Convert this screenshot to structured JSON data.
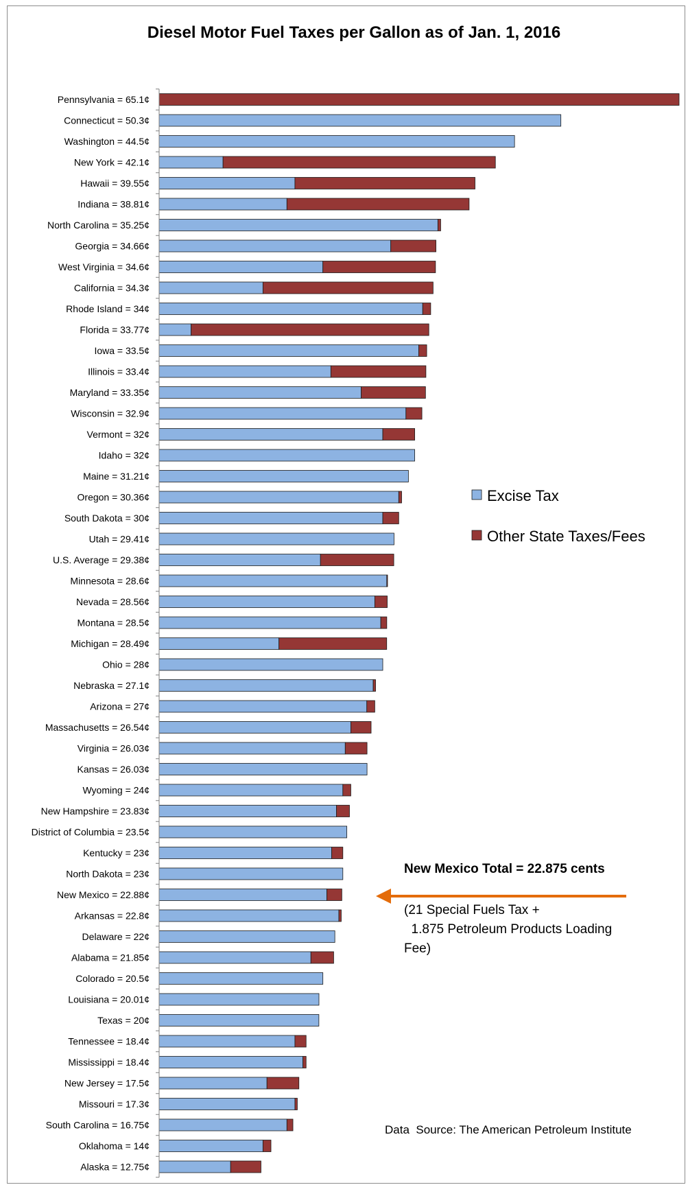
{
  "chart_data": {
    "type": "bar",
    "orientation": "horizontal",
    "stacked": true,
    "title": "Diesel Motor Fuel Taxes per Gallon as of Jan. 1, 2016",
    "xlim": [
      0,
      65.1
    ],
    "grid": false,
    "legend_placement": "right",
    "colors": {
      "excise": "#8db3e2",
      "other": "#953735",
      "arrow": "#e46c0a",
      "outline": "#1a1a1a"
    },
    "series": [
      {
        "name": "Excise Tax",
        "key": "excise"
      },
      {
        "name": "Other State Taxes/Fees",
        "key": "other"
      }
    ],
    "categories": [
      {
        "label": "Pennsylvania = 65.1¢",
        "excise": 0,
        "other": 65.1
      },
      {
        "label": "Connecticut = 50.3¢",
        "excise": 50.3,
        "other": 0
      },
      {
        "label": "Washington = 44.5¢",
        "excise": 44.5,
        "other": 0
      },
      {
        "label": "New York = 42.1¢",
        "excise": 8.0,
        "other": 34.1
      },
      {
        "label": "Hawaii = 39.55¢",
        "excise": 17.0,
        "other": 22.55
      },
      {
        "label": "Indiana = 38.81¢",
        "excise": 16.0,
        "other": 22.81
      },
      {
        "label": "North Carolina = 35.25¢",
        "excise": 34.9,
        "other": 0.35
      },
      {
        "label": "Georgia = 34.66¢",
        "excise": 29.0,
        "other": 5.66
      },
      {
        "label": "West Virginia = 34.6¢",
        "excise": 20.5,
        "other": 14.1
      },
      {
        "label": "California = 34.3¢",
        "excise": 13.0,
        "other": 21.3
      },
      {
        "label": "Rhode Island = 34¢",
        "excise": 33.0,
        "other": 1.0
      },
      {
        "label": "Florida = 33.77¢",
        "excise": 4.0,
        "other": 29.77
      },
      {
        "label": "Iowa = 33.5¢",
        "excise": 32.5,
        "other": 1.0
      },
      {
        "label": "Illinois = 33.4¢",
        "excise": 21.5,
        "other": 11.9
      },
      {
        "label": "Maryland = 33.35¢",
        "excise": 25.3,
        "other": 8.05
      },
      {
        "label": "Wisconsin = 32.9¢",
        "excise": 30.9,
        "other": 2.0
      },
      {
        "label": "Vermont = 32¢",
        "excise": 28.0,
        "other": 4.0
      },
      {
        "label": "Idaho = 32¢",
        "excise": 32.0,
        "other": 0
      },
      {
        "label": "Maine = 31.21¢",
        "excise": 31.21,
        "other": 0
      },
      {
        "label": "Oregon = 30.36¢",
        "excise": 30.0,
        "other": 0.36
      },
      {
        "label": "South Dakota = 30¢",
        "excise": 28.0,
        "other": 2.0
      },
      {
        "label": "Utah = 29.41¢",
        "excise": 29.41,
        "other": 0
      },
      {
        "label": "U.S. Average = 29.38¢",
        "excise": 20.2,
        "other": 9.18
      },
      {
        "label": "Minnesota = 28.6¢",
        "excise": 28.5,
        "other": 0.1
      },
      {
        "label": "Nevada = 28.56¢",
        "excise": 27.0,
        "other": 1.56
      },
      {
        "label": "Montana = 28.5¢",
        "excise": 27.75,
        "other": 0.75
      },
      {
        "label": "Michigan = 28.49¢",
        "excise": 15.0,
        "other": 13.49
      },
      {
        "label": "Ohio = 28¢",
        "excise": 28.0,
        "other": 0
      },
      {
        "label": "Nebraska = 27.1¢",
        "excise": 26.8,
        "other": 0.3
      },
      {
        "label": "Arizona = 27¢",
        "excise": 26.0,
        "other": 1.0
      },
      {
        "label": "Massachusetts = 26.54¢",
        "excise": 24.0,
        "other": 2.54
      },
      {
        "label": "Virginia = 26.03¢",
        "excise": 23.3,
        "other": 2.73
      },
      {
        "label": "Kansas = 26.03¢",
        "excise": 26.03,
        "other": 0
      },
      {
        "label": "Wyoming = 24¢",
        "excise": 23.0,
        "other": 1.0
      },
      {
        "label": "New Hampshire = 23.83¢",
        "excise": 22.2,
        "other": 1.63
      },
      {
        "label": "District of Columbia = 23.5¢",
        "excise": 23.5,
        "other": 0
      },
      {
        "label": "Kentucky = 23¢",
        "excise": 21.6,
        "other": 1.4
      },
      {
        "label": "North Dakota = 23¢",
        "excise": 23.0,
        "other": 0
      },
      {
        "label": "New Mexico = 22.88¢",
        "excise": 21.0,
        "other": 1.875
      },
      {
        "label": "Arkansas = 22.8¢",
        "excise": 22.5,
        "other": 0.3
      },
      {
        "label": "Delaware = 22¢",
        "excise": 22.0,
        "other": 0
      },
      {
        "label": "Alabama  = 21.85¢",
        "excise": 19.0,
        "other": 2.85
      },
      {
        "label": "Colorado = 20.5¢",
        "excise": 20.5,
        "other": 0
      },
      {
        "label": "Louisiana = 20.01¢",
        "excise": 20.01,
        "other": 0
      },
      {
        "label": "Texas = 20¢",
        "excise": 20.0,
        "other": 0
      },
      {
        "label": "Tennessee = 18.4¢",
        "excise": 17.0,
        "other": 1.4
      },
      {
        "label": "Mississippi = 18.4¢",
        "excise": 18.0,
        "other": 0.4
      },
      {
        "label": "New Jersey = 17.5¢",
        "excise": 13.5,
        "other": 4.0
      },
      {
        "label": "Missouri = 17.3¢",
        "excise": 17.0,
        "other": 0.3
      },
      {
        "label": "South Carolina = 16.75¢",
        "excise": 16.0,
        "other": 0.75
      },
      {
        "label": "Oklahoma = 14¢",
        "excise": 13.0,
        "other": 1.0
      },
      {
        "label": "Alaska = 12.75¢",
        "excise": 8.95,
        "other": 3.8
      }
    ],
    "annotations": {
      "highlight_category": "New Mexico = 22.88¢",
      "callout_title": "New Mexico  Total = 22.875 cents",
      "callout_lines": [
        "(21 Special Fuels Tax +",
        "  1.875 Petroleum Products Loading",
        "Fee)"
      ],
      "source": "Data  Source: The American Petroleum Institute"
    }
  }
}
